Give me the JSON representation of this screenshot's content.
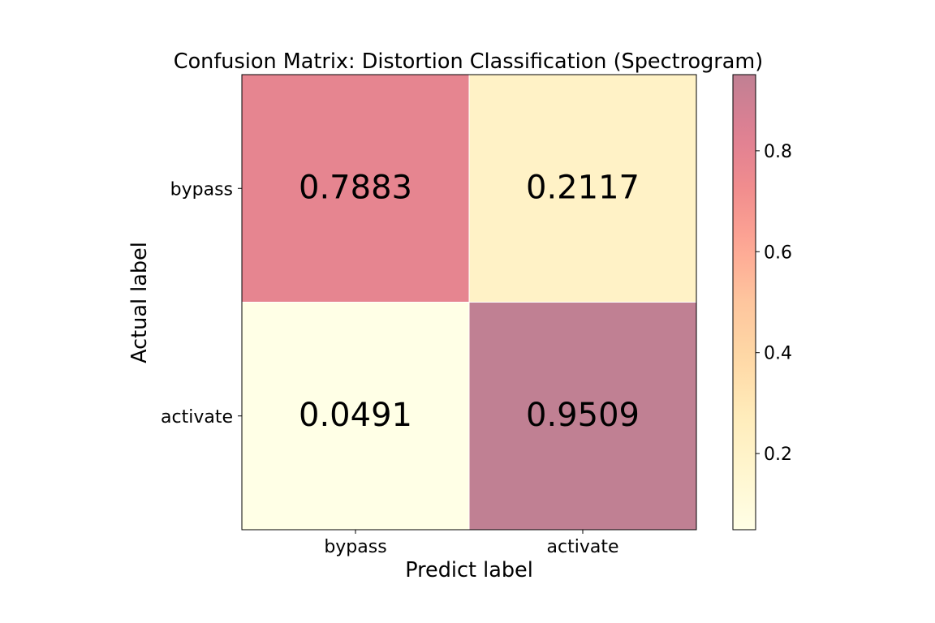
{
  "chart_data": {
    "type": "heatmap",
    "title": "Confusion Matrix: Distortion Classification (Spectrogram)",
    "xlabel": "Predict label",
    "ylabel": "Actual label",
    "x_categories": [
      "bypass",
      "activate"
    ],
    "y_categories": [
      "bypass",
      "activate"
    ],
    "matrix": [
      [
        0.7883,
        0.2117
      ],
      [
        0.0491,
        0.9509
      ]
    ],
    "cell_labels": [
      [
        "0.7883",
        "0.2117"
      ],
      [
        "0.0491",
        "0.9509"
      ]
    ],
    "colorbar": {
      "range": [
        0.0491,
        0.9509
      ],
      "ticks": [
        0.2,
        0.4,
        0.6,
        0.8
      ],
      "tick_labels": [
        "0.2",
        "0.4",
        "0.6",
        "0.8"
      ],
      "colormap": "YlOrRd",
      "alpha": 0.5
    },
    "colormap_stops": [
      "#ffffcc",
      "#ffeda0",
      "#fed976",
      "#feb24c",
      "#fd8d3c",
      "#fc4e2a",
      "#e31a1c",
      "#bd0026",
      "#800026"
    ],
    "colors": {
      "background": "#ffffff",
      "cell_grid": "#ffffff",
      "frame": "#000000",
      "text": "#000000"
    },
    "grid": false
  }
}
